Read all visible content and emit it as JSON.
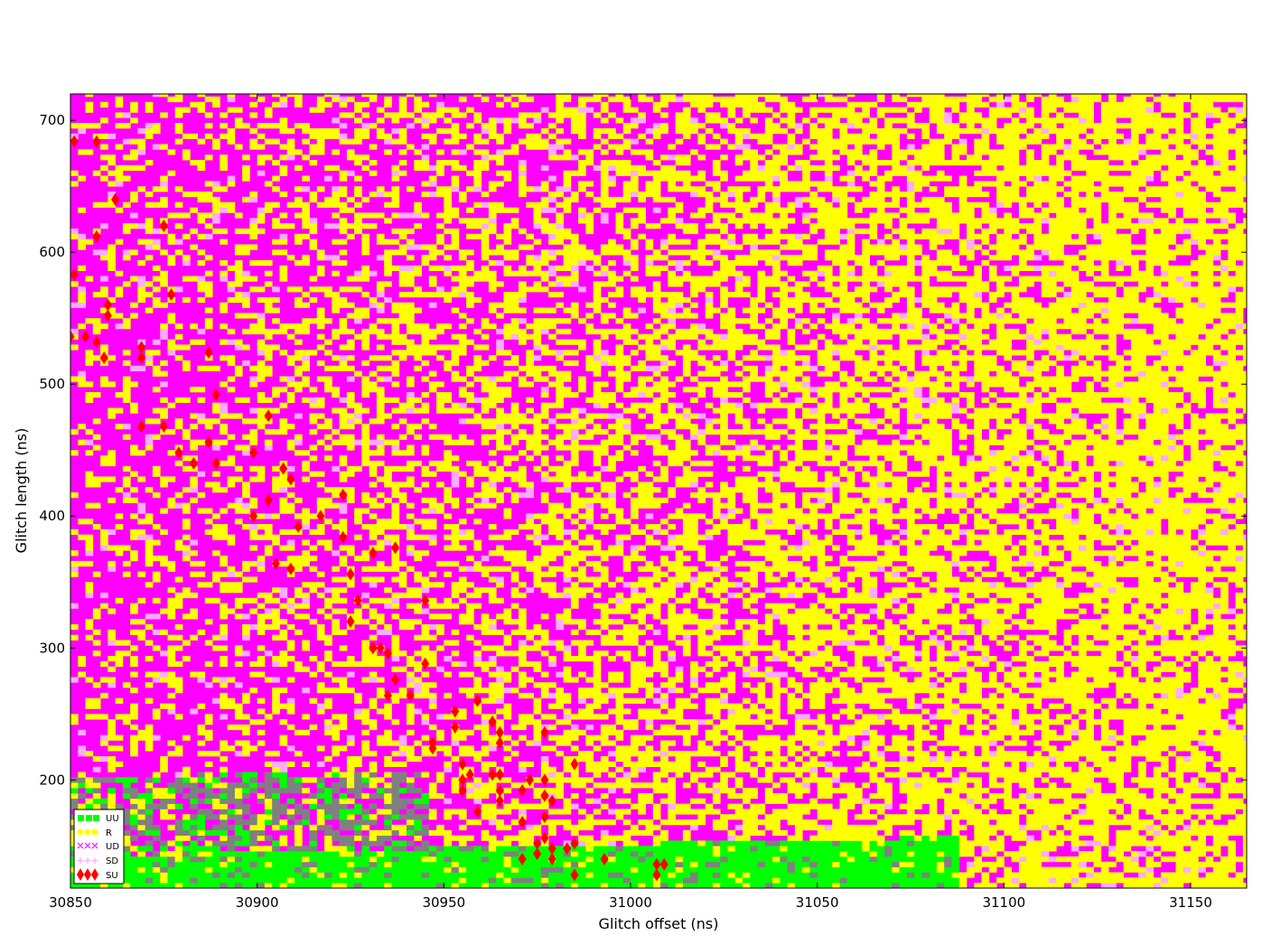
{
  "chart_data": {
    "type": "scatter",
    "xlabel": "Glitch offset (ns)",
    "ylabel": "Glitch length (ns)",
    "xlim": [
      30850,
      31165
    ],
    "ylim": [
      118,
      720
    ],
    "x_ticks": [
      "30850",
      "30900",
      "30950",
      "31000",
      "31050",
      "31100",
      "31150"
    ],
    "y_ticks": [
      "200",
      "300",
      "400",
      "500",
      "600",
      "700"
    ],
    "legend_position": "lower-left",
    "grid": false,
    "colors": {
      "UU": "#00ff00",
      "R": "#ffff00",
      "UD": "#ff00ff",
      "SD": "#ffaaff",
      "SU": "#ff0000",
      "UU_mixed": "#808080"
    },
    "series": [
      {
        "name": "UU",
        "marker": "square",
        "color": "#00ff00"
      },
      {
        "name": "R",
        "marker": "circle",
        "color": "#ffff00"
      },
      {
        "name": "UD",
        "marker": "x",
        "color": "#ff00ff"
      },
      {
        "name": "SD",
        "marker": "plus",
        "color": "#ffaaff"
      },
      {
        "name": "SU",
        "marker": "diamond",
        "color": "#ff0000"
      }
    ],
    "su_points": [
      [
        30851,
        684
      ],
      [
        30857,
        684
      ],
      [
        30851,
        583
      ],
      [
        30857,
        612
      ],
      [
        30862,
        640
      ],
      [
        30875,
        620
      ],
      [
        30877,
        568
      ],
      [
        30860,
        560
      ],
      [
        30860,
        552
      ],
      [
        30850,
        536
      ],
      [
        30854,
        536
      ],
      [
        30857,
        532
      ],
      [
        30859,
        520
      ],
      [
        30869,
        528
      ],
      [
        30869,
        520
      ],
      [
        30887,
        524
      ],
      [
        30889,
        492
      ],
      [
        30903,
        476
      ],
      [
        30869,
        468
      ],
      [
        30875,
        468
      ],
      [
        30879,
        448
      ],
      [
        30883,
        440
      ],
      [
        30887,
        456
      ],
      [
        30889,
        440
      ],
      [
        30899,
        448
      ],
      [
        30907,
        436
      ],
      [
        30909,
        428
      ],
      [
        30903,
        412
      ],
      [
        30899,
        400
      ],
      [
        30911,
        392
      ],
      [
        30917,
        400
      ],
      [
        30923,
        416
      ],
      [
        30923,
        384
      ],
      [
        30925,
        356
      ],
      [
        30905,
        364
      ],
      [
        30909,
        360
      ],
      [
        30927,
        336
      ],
      [
        30931,
        372
      ],
      [
        30937,
        376
      ],
      [
        30925,
        320
      ],
      [
        30931,
        300
      ],
      [
        30933,
        300
      ],
      [
        30935,
        296
      ],
      [
        30945,
        336
      ],
      [
        30935,
        264
      ],
      [
        30937,
        276
      ],
      [
        30941,
        264
      ],
      [
        30945,
        288
      ],
      [
        30947,
        228
      ],
      [
        30947,
        224
      ],
      [
        30953,
        252
      ],
      [
        30953,
        240
      ],
      [
        30955,
        212
      ],
      [
        30955,
        200
      ],
      [
        30955,
        192
      ],
      [
        30957,
        204
      ],
      [
        30959,
        260
      ],
      [
        30959,
        176
      ],
      [
        30963,
        244
      ],
      [
        30963,
        204
      ],
      [
        30965,
        236
      ],
      [
        30965,
        228
      ],
      [
        30965,
        204
      ],
      [
        30965,
        192
      ],
      [
        30965,
        184
      ],
      [
        30971,
        192
      ],
      [
        30971,
        168
      ],
      [
        30971,
        140
      ],
      [
        30973,
        200
      ],
      [
        30975,
        152
      ],
      [
        30975,
        144
      ],
      [
        30977,
        236
      ],
      [
        30977,
        200
      ],
      [
        30977,
        188
      ],
      [
        30977,
        172
      ],
      [
        30977,
        156
      ],
      [
        30979,
        184
      ],
      [
        30979,
        148
      ],
      [
        30979,
        140
      ],
      [
        30983,
        148
      ],
      [
        30985,
        212
      ],
      [
        30985,
        152
      ],
      [
        30985,
        128
      ],
      [
        30993,
        140
      ],
      [
        31007,
        136
      ],
      [
        31007,
        128
      ],
      [
        31009,
        136
      ]
    ]
  }
}
